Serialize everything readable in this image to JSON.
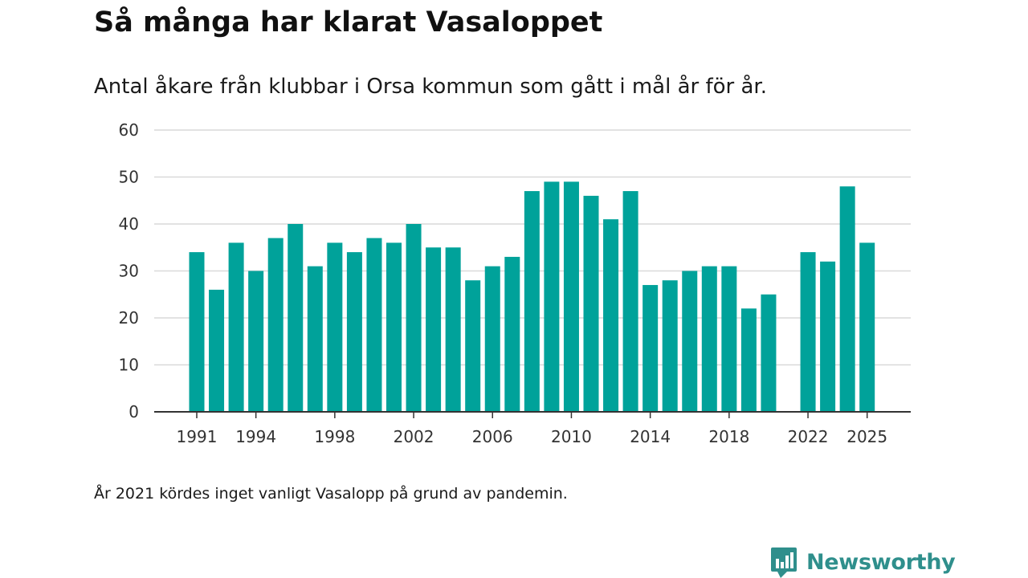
{
  "header": {
    "title": "Så många har klarat Vasaloppet",
    "subtitle": "Antal åkare från klubbar i Orsa kommun som gått i mål år för år."
  },
  "footer": {
    "note": "År 2021 kördes inget vanligt Vasalopp på grund av pandemin.",
    "brand": "Newsworthy"
  },
  "colors": {
    "bar": "#00a29a",
    "grid": "#d9d9d9",
    "axis": "#333333",
    "brand": "#2f8f8c"
  },
  "chart_data": {
    "type": "bar",
    "title": "Så många har klarat Vasaloppet",
    "subtitle": "Antal åkare från klubbar i Orsa kommun som gått i mål år för år.",
    "xlabel": "",
    "ylabel": "",
    "ylim": [
      0,
      60
    ],
    "yticks": [
      0,
      10,
      20,
      30,
      40,
      50,
      60
    ],
    "xticks": [
      1991,
      1994,
      1998,
      2002,
      2006,
      2010,
      2014,
      2018,
      2022,
      2025
    ],
    "grid": true,
    "categories": [
      1991,
      1992,
      1993,
      1994,
      1995,
      1996,
      1997,
      1998,
      1999,
      2000,
      2001,
      2002,
      2003,
      2004,
      2005,
      2006,
      2007,
      2008,
      2009,
      2010,
      2011,
      2012,
      2013,
      2014,
      2015,
      2016,
      2017,
      2018,
      2019,
      2020,
      2021,
      2022,
      2023,
      2024,
      2025
    ],
    "values": [
      34,
      26,
      36,
      30,
      37,
      40,
      31,
      36,
      34,
      37,
      36,
      40,
      35,
      35,
      28,
      31,
      33,
      47,
      49,
      49,
      46,
      41,
      47,
      27,
      28,
      30,
      31,
      31,
      22,
      25,
      null,
      34,
      32,
      48,
      36
    ]
  }
}
